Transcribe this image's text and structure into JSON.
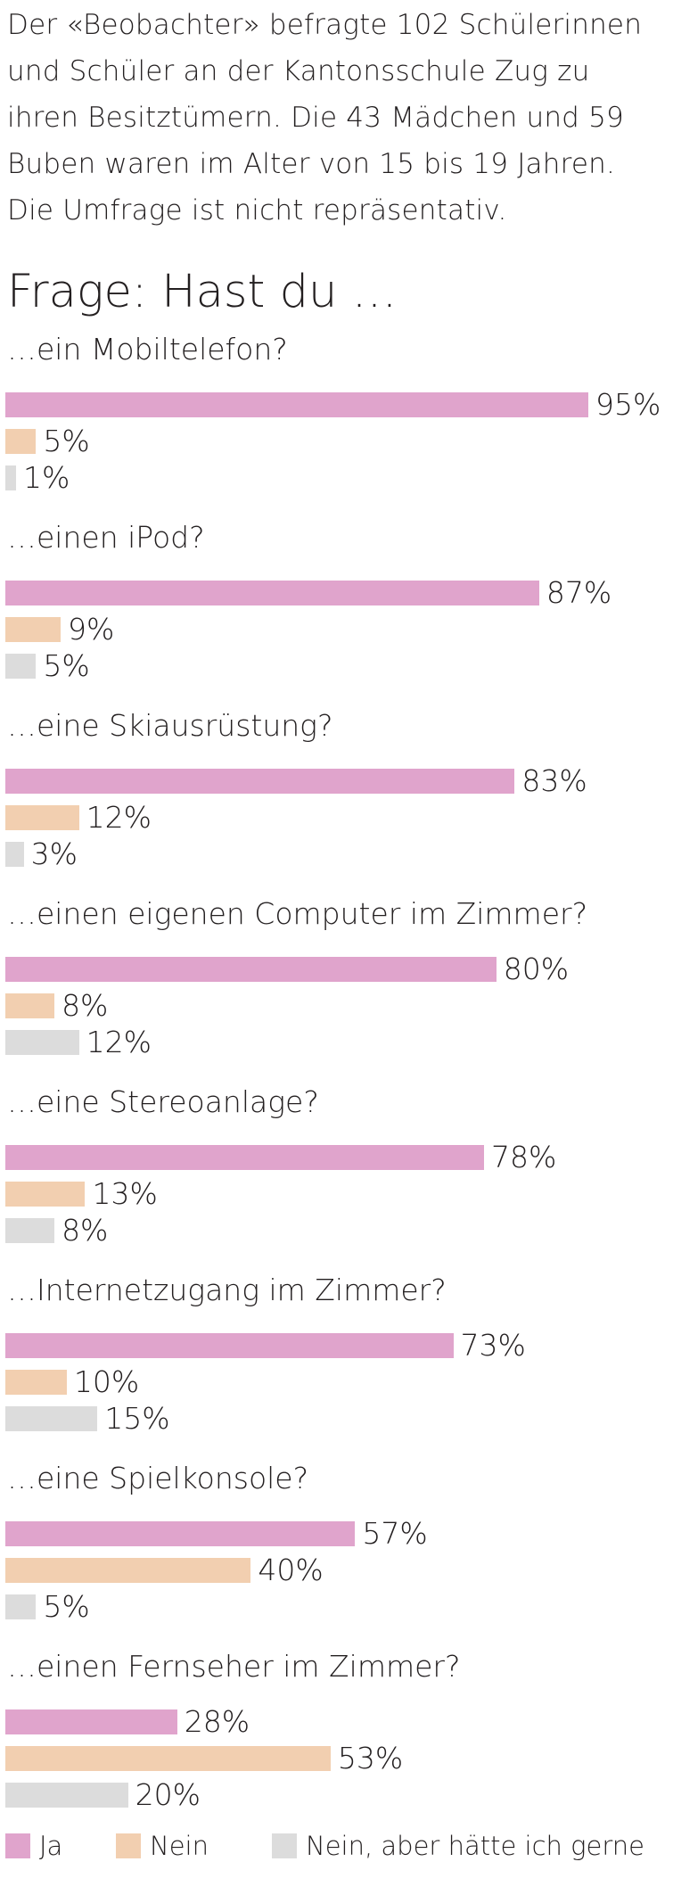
{
  "intro_text": "Der «Beobachter» befragte 102 Schülerinnen und Schüler an der Kantonsschule Zug zu ihren Besitztümern. Die 43 Mädchen und 59 Buben waren im Alter von 15 bis 19 Jahren. Die Umfrage ist nicht repräsentativ.",
  "colors": {
    "ja": "#e0a4cc",
    "nein": "#f2cfb0",
    "nein_gerne": "#dcdcdc",
    "text": "#231f20"
  },
  "chart_data": {
    "type": "bar",
    "orientation": "horizontal",
    "title": "Frage: Hast du …",
    "xlim": [
      0,
      100
    ],
    "unit": "%",
    "grid": false,
    "legend": "bottom",
    "series_names": [
      "Ja",
      "Nein",
      "Nein, aber hätte ich gerne"
    ],
    "categories": [
      "…ein Mobiltelefon?",
      "…einen iPod?",
      "…eine Skiausrüstung?",
      "…einen eigenen Computer im Zimmer?",
      "…eine Stereoanlage?",
      "…Internetzugang im Zimmer?",
      "…eine Spielkonsole?",
      "…einen Fernseher im Zimmer?"
    ],
    "series": [
      {
        "name": "Ja",
        "values": [
          95,
          87,
          83,
          80,
          78,
          73,
          57,
          28
        ]
      },
      {
        "name": "Nein",
        "values": [
          5,
          9,
          12,
          8,
          13,
          10,
          40,
          53
        ]
      },
      {
        "name": "Nein, aber hätte ich gerne",
        "values": [
          1,
          5,
          3,
          12,
          8,
          15,
          5,
          20
        ]
      }
    ]
  }
}
